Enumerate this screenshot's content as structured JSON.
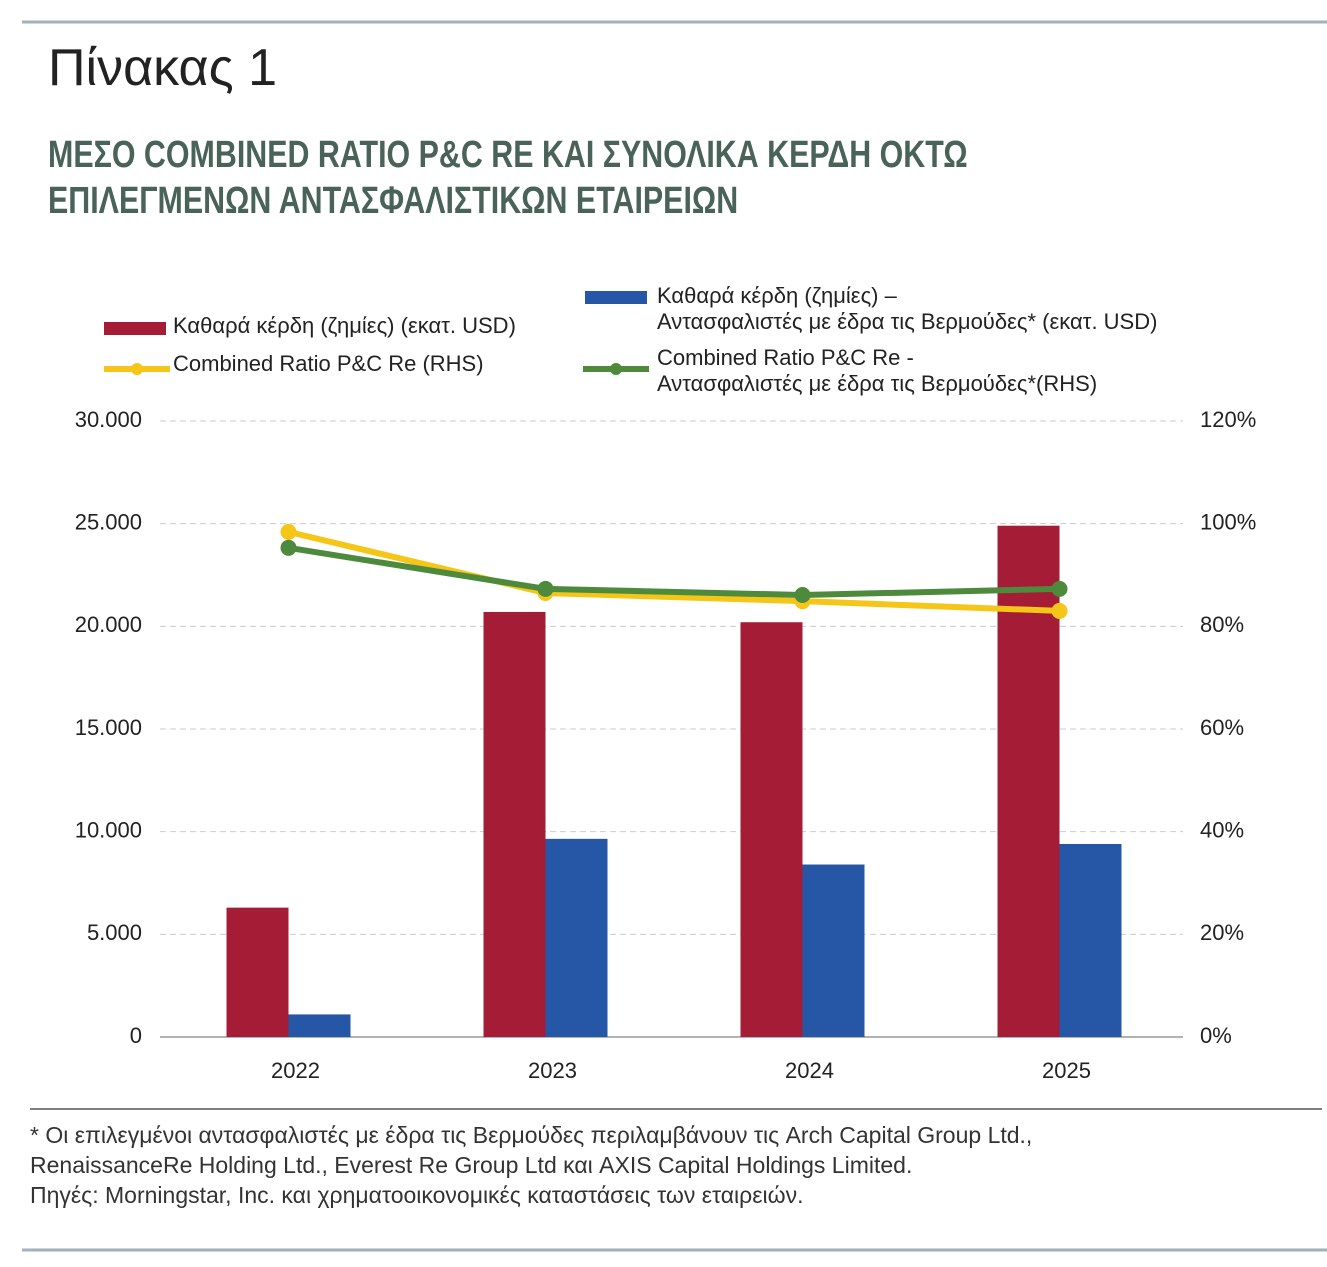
{
  "chart_data": {
    "type": "bar_line",
    "title": "Πίνακας 1",
    "subtitle_lines": [
      "ΜΕΣΟ COMBINED RATIO P&C RE ΚΑΙ ΣΥΝΟΛΙΚΑ ΚΕΡΔΗ ΟΚΤΩ",
      "ΕΠΙΛΕΓΜΕΝΩΝ ΑΝΤΑΣΦΑΛΙΣΤΙΚΩΝ ΕΤΑΙΡΕΙΩΝ"
    ],
    "categories": [
      "2022",
      "2023",
      "2024",
      "2025"
    ],
    "series": [
      {
        "name": "Καθαρά κέρδη (ζημίες) (εκατ. USD)",
        "type": "bar",
        "color": "#a51c36",
        "values": [
          6300,
          20700,
          20200,
          24900
        ]
      },
      {
        "name": "Καθαρά κέρδη (ζημίες) –\nΑντασφαλιστές με έδρα τις Βερμούδες* (εκατ. USD)",
        "type": "bar",
        "color": "#2657a7",
        "values": [
          1100,
          9650,
          8400,
          9400
        ]
      },
      {
        "name": "Combined Ratio P&C Re (RHS)",
        "type": "line",
        "axis": "y2",
        "color": "#f5c518",
        "values": [
          98.4,
          86.5,
          84.9,
          83.0
        ]
      },
      {
        "name": "Combined Ratio P&C Re -\nΑντασφαλιστές με έδρα τις Βερμούδες*(RHS)",
        "type": "line",
        "axis": "y2",
        "color": "#4e8a3c",
        "values": [
          95.3,
          87.3,
          86.1,
          87.3
        ]
      }
    ],
    "ylim": [
      0,
      30000
    ],
    "yticks": [
      0,
      {
        "value": 5000,
        "label": "5.000"
      },
      {
        "value": 10000,
        "label": "10.000"
      },
      {
        "value": 15000,
        "label": "15.000"
      },
      {
        "value": 20000,
        "label": "20.000"
      },
      {
        "value": 25000,
        "label": "25.000"
      },
      {
        "value": 30000,
        "label": "30.000"
      }
    ],
    "y2lim": [
      0,
      120
    ],
    "y2ticks": [
      {
        "value": 0,
        "label": "0%"
      },
      {
        "value": 20,
        "label": "20%"
      },
      {
        "value": 40,
        "label": "40%"
      },
      {
        "value": 60,
        "label": "60%"
      },
      {
        "value": 80,
        "label": "80%"
      },
      {
        "value": 100,
        "label": "100%"
      },
      {
        "value": 120,
        "label": "120%"
      }
    ],
    "grid": true,
    "footnote": "* Οι επιλεγμένοι αντασφαλιστές με έδρα τις Βερμούδες περιλαμβάνουν τις Arch Capital Group Ltd.,\nRenaissanceRe Holding Ltd., Everest Re Group Ltd και AXIS Capital Holdings Limited.",
    "source": "Πηγές: Morningstar, Inc. και χρηματοοικονομικές καταστάσεις των εταιρειών."
  }
}
